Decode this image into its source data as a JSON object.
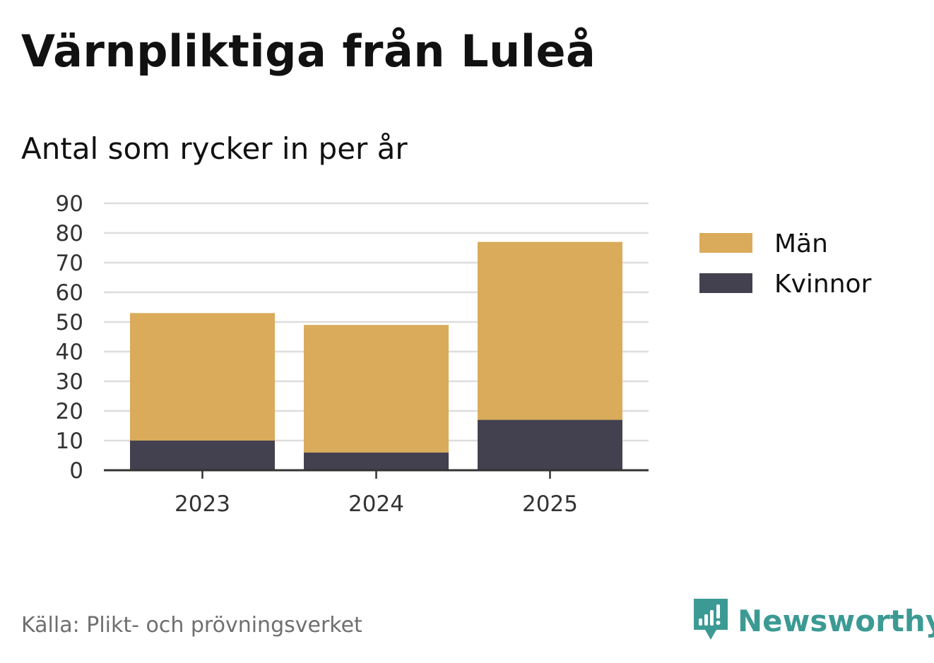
{
  "header": {
    "title": "Värnpliktiga från Luleå",
    "subtitle": "Antal som rycker in per år"
  },
  "footer": {
    "source": "Källa: Plikt- och prövningsverket",
    "brand": "Newsworthy",
    "brand_icon": "newsworthy-logo-icon"
  },
  "colors": {
    "man": "#d9ab5a",
    "kvinnor": "#43414f",
    "grid": "#dddddd",
    "axis": "#333333",
    "brand": "#3c9a94"
  },
  "chart_data": {
    "type": "bar",
    "stacked": true,
    "title": "Värnpliktiga från Luleå",
    "subtitle": "Antal som rycker in per år",
    "categories": [
      "2023",
      "2024",
      "2025"
    ],
    "series": [
      {
        "name": "Kvinnor",
        "values": [
          10,
          6,
          17
        ]
      },
      {
        "name": "Män",
        "values": [
          43,
          43,
          60
        ]
      }
    ],
    "legend": [
      "Män",
      "Kvinnor"
    ],
    "legend_position": "right",
    "ylim": [
      0,
      90
    ],
    "yticks": [
      "0",
      "10",
      "20",
      "30",
      "40",
      "50",
      "60",
      "70",
      "80",
      "90"
    ],
    "grid": true
  }
}
